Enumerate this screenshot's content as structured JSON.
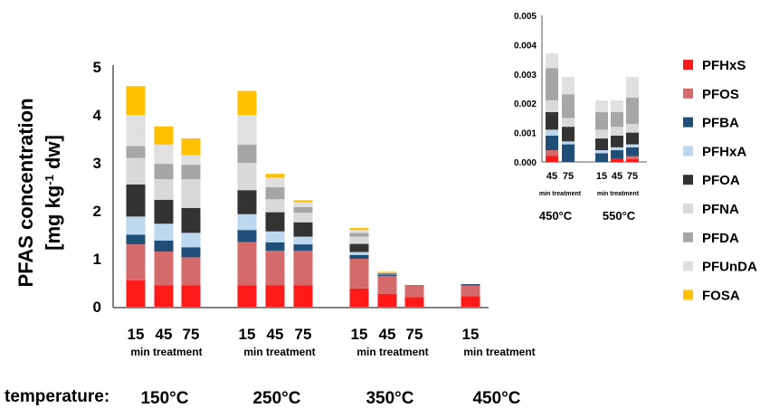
{
  "series_colors": {
    "PFHxS": "#ff1a1a",
    "PFOS": "#d46a6a",
    "PFBA": "#1f4e79",
    "PFHxA": "#bdd7ee",
    "PFOA": "#333333",
    "PFNA": "#d9d9d9",
    "PFDA": "#a6a6a6",
    "PFUnDA": "#e0e0e0",
    "FOSA": "#ffc000"
  },
  "legend": {
    "items": [
      "PFHxS",
      "PFOS",
      "PFBA",
      "PFHxA",
      "PFOA",
      "PFNA",
      "PFDA",
      "PFUnDA",
      "FOSA"
    ]
  },
  "footer": {
    "temperature_label": "temperature:"
  },
  "chart_data": [
    {
      "type": "bar",
      "stacked": true,
      "ylabel_main": "PFAS concentration",
      "ylabel_unit": "[mg kg-1 dw]",
      "ylabel_unit_parts": {
        "prefix": "[mg kg",
        "sup": "-1",
        "suffix": " dw]"
      },
      "ylim": [
        0,
        5
      ],
      "yticks": [
        "0",
        "1",
        "2",
        "3",
        "4",
        "5"
      ],
      "grid": false,
      "legend_position": "right",
      "groups": [
        {
          "label": "150°C",
          "sublabel": "min treatment",
          "times": [
            "15",
            "45",
            "75"
          ]
        },
        {
          "label": "250°C",
          "sublabel": "min treatment",
          "times": [
            "15",
            "45",
            "75"
          ]
        },
        {
          "label": "350°C",
          "sublabel": "min treatment",
          "times": [
            "15",
            "45",
            "75"
          ]
        },
        {
          "label": "450°C",
          "sublabel": "min treatment",
          "times": [
            "15"
          ]
        }
      ],
      "series": [
        {
          "name": "PFHxS",
          "values": [
            0.55,
            0.45,
            0.45,
            0.45,
            0.45,
            0.45,
            0.38,
            0.27,
            0.2,
            0.22
          ]
        },
        {
          "name": "PFOS",
          "values": [
            0.75,
            0.7,
            0.58,
            0.9,
            0.72,
            0.72,
            0.62,
            0.37,
            0.24,
            0.22
          ]
        },
        {
          "name": "PFBA",
          "values": [
            0.2,
            0.23,
            0.21,
            0.25,
            0.17,
            0.13,
            0.08,
            0.02,
            0.01,
            0.03
          ]
        },
        {
          "name": "PFHxA",
          "values": [
            0.38,
            0.35,
            0.3,
            0.33,
            0.23,
            0.16,
            0.06,
            0.01,
            0.0,
            0.0
          ]
        },
        {
          "name": "PFOA",
          "values": [
            0.67,
            0.5,
            0.52,
            0.5,
            0.4,
            0.3,
            0.17,
            0.02,
            0.0,
            0.0
          ]
        },
        {
          "name": "PFNA",
          "values": [
            0.55,
            0.43,
            0.6,
            0.57,
            0.27,
            0.2,
            0.15,
            0.01,
            0.0,
            0.0
          ]
        },
        {
          "name": "PFDA",
          "values": [
            0.25,
            0.32,
            0.3,
            0.38,
            0.25,
            0.12,
            0.08,
            0.01,
            0.0,
            0.0
          ]
        },
        {
          "name": "PFUnDA",
          "values": [
            0.65,
            0.4,
            0.2,
            0.62,
            0.2,
            0.1,
            0.06,
            0.01,
            0.0,
            0.0
          ]
        },
        {
          "name": "FOSA",
          "values": [
            0.6,
            0.38,
            0.35,
            0.5,
            0.08,
            0.04,
            0.04,
            0.01,
            0.0,
            0.0
          ]
        }
      ]
    },
    {
      "type": "bar",
      "stacked": true,
      "inset": true,
      "ylim": [
        0,
        0.005
      ],
      "yticks": [
        "0.000",
        "0.001",
        "0.002",
        "0.003",
        "0.004",
        "0.005"
      ],
      "grid": false,
      "groups": [
        {
          "label": "450°C",
          "sublabel": "min treatment",
          "times": [
            "45",
            "75"
          ]
        },
        {
          "label": "550°C",
          "sublabel": "min treatment",
          "times": [
            "15",
            "45",
            "75"
          ]
        }
      ],
      "series": [
        {
          "name": "PFHxS",
          "values": [
            0.0002,
            0.0,
            0.0,
            0.0001,
            0.0001
          ]
        },
        {
          "name": "PFOS",
          "values": [
            0.0002,
            0.0,
            0.0,
            0.0,
            0.0001
          ]
        },
        {
          "name": "PFBA",
          "values": [
            0.0005,
            0.0006,
            0.0003,
            0.0003,
            0.0003
          ]
        },
        {
          "name": "PFHxA",
          "values": [
            0.0002,
            0.0001,
            0.0001,
            0.0001,
            0.0001
          ]
        },
        {
          "name": "PFOA",
          "values": [
            0.0006,
            0.0005,
            0.0004,
            0.0004,
            0.0004
          ]
        },
        {
          "name": "PFNA",
          "values": [
            0.0004,
            0.0003,
            0.0003,
            0.0003,
            0.0003
          ]
        },
        {
          "name": "PFDA",
          "values": [
            0.0011,
            0.0008,
            0.0006,
            0.0005,
            0.0009
          ]
        },
        {
          "name": "PFUnDA",
          "values": [
            0.0005,
            0.0006,
            0.0004,
            0.0004,
            0.0007
          ]
        },
        {
          "name": "FOSA",
          "values": [
            0.0,
            0.0,
            0.0,
            0.0,
            0.0
          ]
        }
      ]
    }
  ]
}
